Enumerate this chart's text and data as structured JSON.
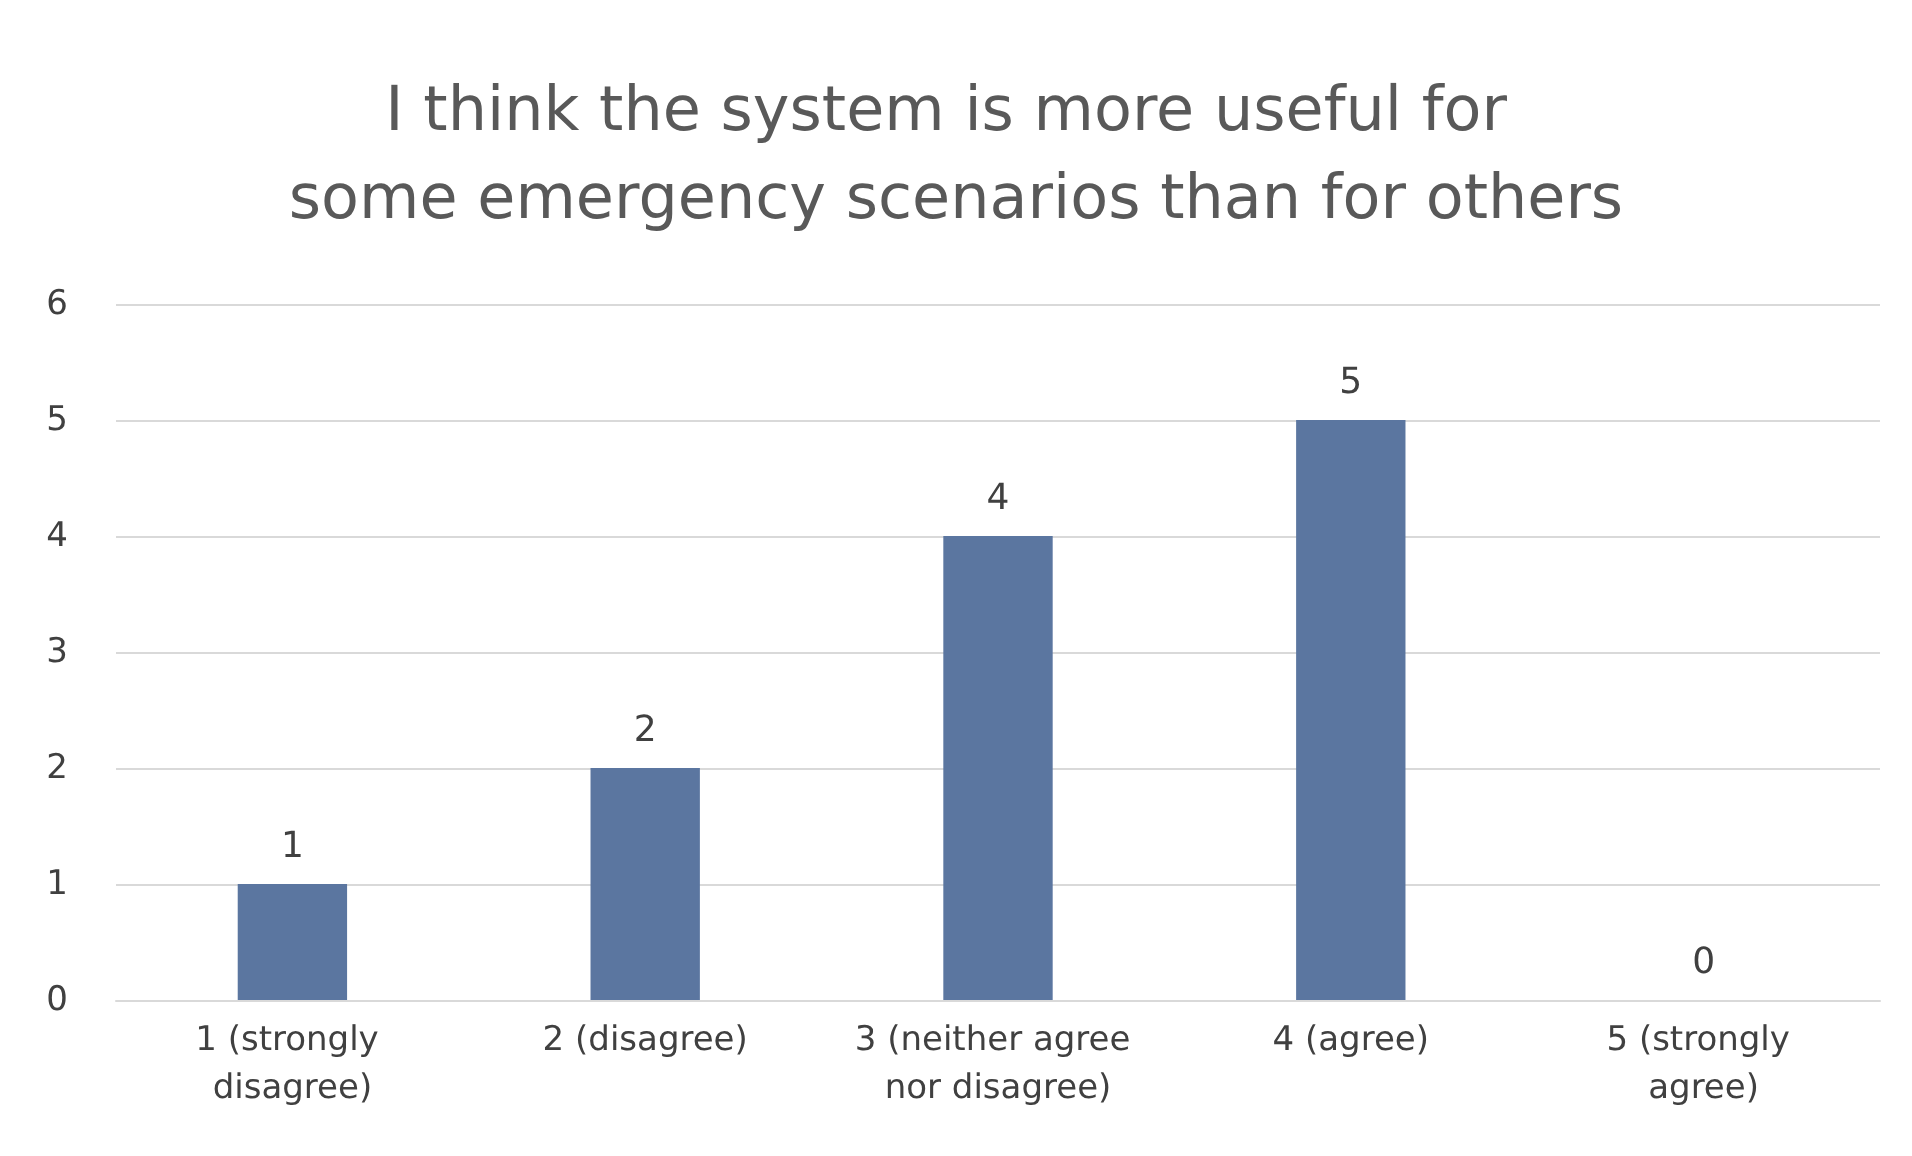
{
  "chart_data": {
    "type": "bar",
    "title": "I think the system is more useful for some emergency scenarios than for others",
    "categories": [
      "1 (strongly disagree)",
      "2 (disagree)",
      "3 (neither agree nor disagree)",
      "4 (agree)",
      "5 (strongly agree)"
    ],
    "values": [
      1,
      2,
      4,
      5,
      0
    ],
    "color": "#5b76a0",
    "ylim": [
      0,
      6
    ],
    "yticks": [
      0,
      1,
      2,
      3,
      4,
      5,
      6
    ],
    "grid": "y",
    "data_labels": true
  }
}
